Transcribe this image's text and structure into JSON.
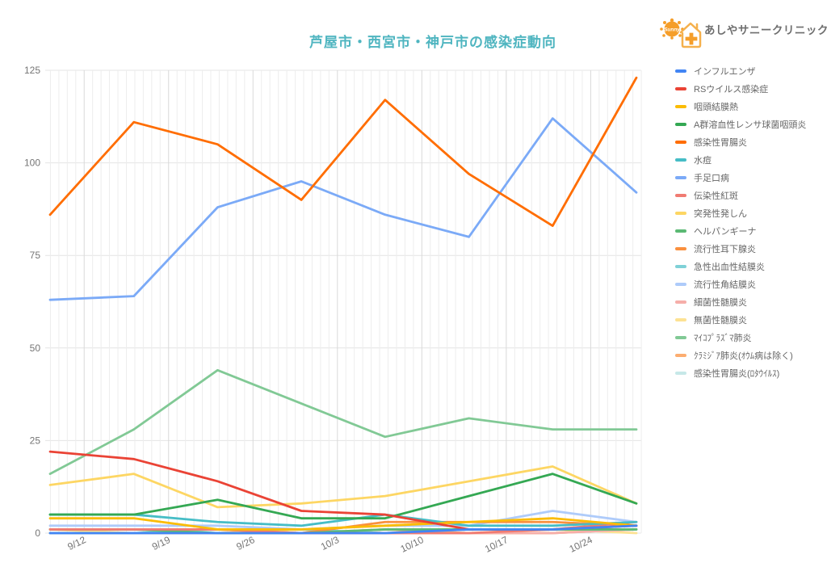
{
  "header": {
    "title": "芦屋市・西宮市・神戸市の感染症動向",
    "clinic_name": "あしやサニークリニック",
    "logo_sun_text": "Sunny"
  },
  "colors": {
    "title": "#4FB5C0",
    "legend_text": "#666666",
    "axis_label": "#757575",
    "grid_minor": "#EDEDED",
    "grid_major": "#D9D9D9",
    "grid_horizontal": "#E4E4E4",
    "logo_orange": "#F59E2A",
    "logo_text": "#6E6E6E"
  },
  "chart_data": {
    "type": "line",
    "title": "芦屋市・西宮市・神戸市の感染症動向",
    "x_tick_labels": [
      "9/12",
      "9/19",
      "9/26",
      "10/3",
      "10/10",
      "10/17",
      "10/24"
    ],
    "y_ticks": [
      0,
      25,
      50,
      75,
      100,
      125
    ],
    "ylim": [
      0,
      125
    ],
    "n_points": 8,
    "grid": true,
    "legend_position": "right",
    "series": [
      {
        "name": "インフルエンザ",
        "color": "#4285F4",
        "values": [
          0,
          0,
          0,
          0,
          0,
          1,
          1,
          2
        ]
      },
      {
        "name": "RSウイルス感染症",
        "color": "#EA4335",
        "values": [
          22,
          20,
          14,
          6,
          5,
          1,
          1,
          2
        ]
      },
      {
        "name": "咽頭結膜熱",
        "color": "#FBBC04",
        "values": [
          4,
          4,
          1,
          1,
          2,
          3,
          4,
          2
        ]
      },
      {
        "name": "A群溶血性レンサ球菌咽頭炎",
        "color": "#34A853",
        "values": [
          5,
          5,
          9,
          4,
          4,
          10,
          16,
          8
        ]
      },
      {
        "name": "感染性胃腸炎",
        "color": "#FF6D01",
        "values": [
          86,
          111,
          105,
          90,
          117,
          97,
          83,
          123
        ]
      },
      {
        "name": "水痘",
        "color": "#46BDC6",
        "values": [
          5,
          5,
          3,
          2,
          5,
          2,
          2,
          3
        ]
      },
      {
        "name": "手足口病",
        "color": "#7BAAF7",
        "values": [
          63,
          64,
          88,
          95,
          86,
          80,
          112,
          92
        ]
      },
      {
        "name": "伝染性紅斑",
        "color": "#F07B72",
        "values": [
          1,
          1,
          1,
          0,
          0,
          0,
          1,
          3
        ]
      },
      {
        "name": "突発性発しん",
        "color": "#FDD663",
        "values": [
          13,
          16,
          7,
          8,
          10,
          14,
          18,
          8
        ]
      },
      {
        "name": "ヘルパンギーナ",
        "color": "#5BB974",
        "values": [
          1,
          1,
          0,
          0,
          1,
          1,
          1,
          1
        ]
      },
      {
        "name": "流行性耳下腺炎",
        "color": "#FA903E",
        "values": [
          1,
          1,
          1,
          0,
          3,
          3,
          3,
          2
        ]
      },
      {
        "name": "急性出血性結膜炎",
        "color": "#7FD1D7",
        "values": [
          0,
          0,
          1,
          1,
          0,
          1,
          1,
          1
        ]
      },
      {
        "name": "流行性角結膜炎",
        "color": "#AECBFA",
        "values": [
          2,
          2,
          2,
          1,
          2,
          2,
          6,
          3
        ]
      },
      {
        "name": "細菌性髄膜炎",
        "color": "#F6AEA9",
        "values": [
          0,
          0,
          0,
          0,
          0,
          0,
          0,
          1
        ]
      },
      {
        "name": "無菌性髄膜炎",
        "color": "#FDE293",
        "values": [
          1,
          0,
          0,
          1,
          0,
          0,
          1,
          0
        ]
      },
      {
        "name": "ﾏｲｺﾌﾟﾗｽﾞﾏ肺炎",
        "color": "#81C995",
        "values": [
          16,
          28,
          44,
          35,
          26,
          31,
          28,
          28
        ]
      },
      {
        "name": "ｸﾗﾐｼﾞｱ肺炎(ｵｳﾑ病は除く)",
        "color": "#FCAD70",
        "values": [
          0,
          0,
          0,
          0,
          1,
          0,
          0,
          1
        ]
      },
      {
        "name": "感染性胃腸炎(ﾛﾀｳｲﾙｽ)",
        "color": "#C6E8E8",
        "values": [
          1,
          1,
          0,
          0,
          0,
          0,
          0,
          1
        ]
      }
    ]
  }
}
